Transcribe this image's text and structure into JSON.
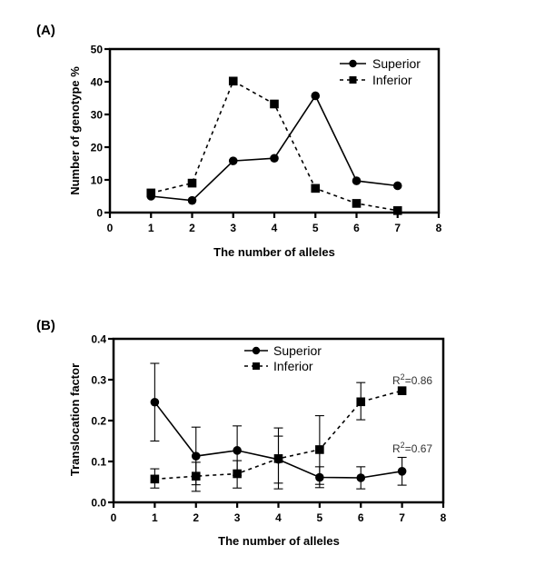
{
  "chart_data": [
    {
      "panel": "(A)",
      "type": "line",
      "title": "",
      "xlabel": "The number of alleles",
      "ylabel": "Number of genotype %",
      "xlim": [
        0,
        8
      ],
      "ylim": [
        0,
        50
      ],
      "xticks": [
        "0",
        "1",
        "2",
        "3",
        "4",
        "5",
        "6",
        "7",
        "8"
      ],
      "yticks": [
        "0",
        "10",
        "20",
        "30",
        "40",
        "50"
      ],
      "grid": false,
      "legend_position": "top-right",
      "x": [
        1,
        2,
        3,
        4,
        5,
        6,
        7
      ],
      "series": [
        {
          "name": "Superior",
          "marker": "circle",
          "line": "solid",
          "values": [
            5.0,
            3.7,
            15.8,
            16.6,
            35.7,
            9.7,
            8.2
          ]
        },
        {
          "name": "Inferior",
          "marker": "square",
          "line": "dashed",
          "values": [
            6.0,
            9.0,
            40.2,
            33.2,
            7.4,
            2.8,
            0.6
          ]
        }
      ]
    },
    {
      "panel": "(B)",
      "type": "line",
      "title": "",
      "xlabel": "The number of alleles",
      "ylabel": "Translocation factor",
      "xlim": [
        0,
        8
      ],
      "ylim": [
        0,
        0.4
      ],
      "xticks": [
        "0",
        "1",
        "2",
        "3",
        "4",
        "5",
        "6",
        "7",
        "8"
      ],
      "yticks": [
        "0.0",
        "0.1",
        "0.2",
        "0.3",
        "0.4"
      ],
      "grid": false,
      "legend_position": "top-center",
      "x": [
        1,
        2,
        3,
        4,
        5,
        6,
        7
      ],
      "series": [
        {
          "name": "Superior",
          "marker": "circle",
          "line": "solid",
          "values": [
            0.245,
            0.113,
            0.127,
            0.105,
            0.061,
            0.06,
            0.076
          ],
          "err_upper": [
            0.34,
            0.184,
            0.187,
            0.162,
            0.087,
            0.087,
            0.11
          ],
          "err_lower": [
            0.15,
            0.043,
            0.066,
            0.047,
            0.036,
            0.033,
            0.042
          ],
          "annotation": {
            "label": "R",
            "sup": "2",
            "text": "=0.67"
          }
        },
        {
          "name": "Inferior",
          "marker": "square",
          "line": "dashed",
          "values": [
            0.057,
            0.064,
            0.07,
            0.107,
            0.129,
            0.246,
            0.273
          ],
          "err_upper": [
            0.082,
            0.098,
            0.102,
            0.182,
            0.212,
            0.293,
            0.273
          ],
          "err_lower": [
            0.035,
            0.027,
            0.035,
            0.033,
            0.044,
            0.202,
            0.273
          ],
          "annotation": {
            "label": "R",
            "sup": "2",
            "text": "=0.86"
          }
        }
      ]
    }
  ]
}
